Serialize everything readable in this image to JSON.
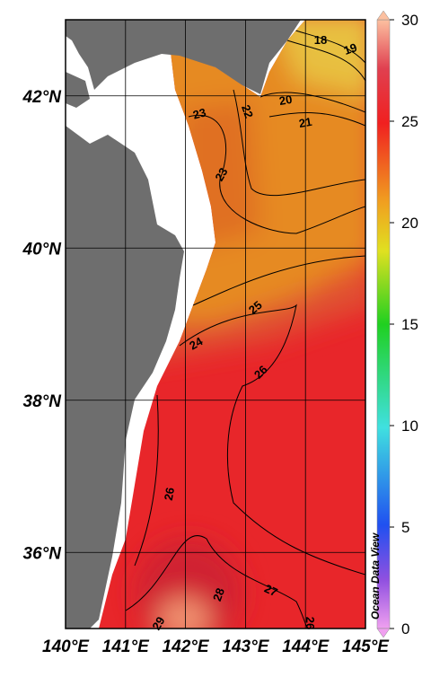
{
  "map": {
    "lon_axis": {
      "range": [
        140,
        145
      ],
      "ticks": [
        {
          "value": 140,
          "label": "140°E"
        },
        {
          "value": 141,
          "label": "141°E"
        },
        {
          "value": 142,
          "label": "142°E"
        },
        {
          "value": 143,
          "label": "143°E"
        },
        {
          "value": 144,
          "label": "144°E"
        },
        {
          "value": 145,
          "label": "145°E"
        }
      ]
    },
    "lat_axis": {
      "range": [
        35,
        43
      ],
      "ticks": [
        {
          "value": 36,
          "label": "36°N"
        },
        {
          "value": 38,
          "label": "38°N"
        },
        {
          "value": 40,
          "label": "40°N"
        },
        {
          "value": 42,
          "label": "42°N"
        }
      ]
    },
    "colorbar": {
      "range": [
        0,
        30
      ],
      "ticks": [
        0,
        5,
        10,
        15,
        20,
        25,
        30
      ]
    },
    "contour_labels": [
      18,
      19,
      20,
      21,
      22,
      23,
      23,
      24,
      25,
      26,
      26,
      27,
      28,
      29,
      26
    ],
    "watermark": "Ocean Data View"
  }
}
